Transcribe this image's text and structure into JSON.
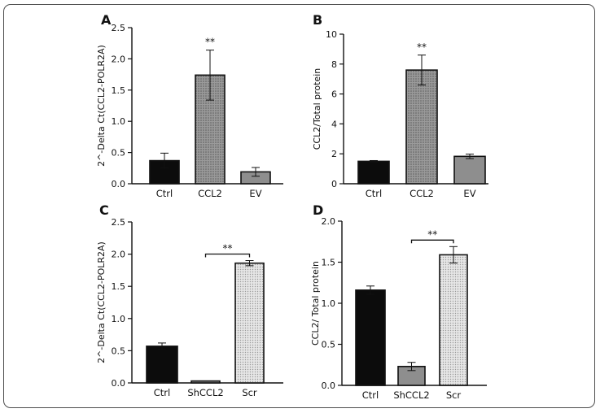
{
  "figure": {
    "frame": "rounded-border",
    "background": "#ffffff"
  },
  "chart_data": [
    {
      "id": "A",
      "type": "bar",
      "panel_label": "A",
      "ylabel": "2^-Delta Ct(CCL2-POLR2A)",
      "xlabel": "",
      "categories": [
        "Ctrl",
        "CCL2",
        "EV"
      ],
      "values": [
        0.37,
        1.74,
        0.19
      ],
      "errors": [
        0.12,
        0.4,
        0.07
      ],
      "bar_styles": [
        "black",
        "dotted-gray",
        "gray"
      ],
      "ylim": [
        0,
        2.5
      ],
      "yticks": [
        0.0,
        0.5,
        1.0,
        1.5,
        2.0,
        2.5
      ],
      "ytick_labels": [
        "0.0",
        "0.5",
        "1.0",
        "1.5",
        "2.0",
        "2.5"
      ],
      "annotations": [
        {
          "type": "star",
          "category": "CCL2",
          "text": "**"
        }
      ]
    },
    {
      "id": "B",
      "type": "bar",
      "panel_label": "B",
      "ylabel": "CCL2/Total protein",
      "xlabel": "",
      "categories": [
        "Ctrl",
        "CCL2",
        "EV"
      ],
      "values": [
        1.5,
        7.6,
        1.83
      ],
      "errors": [
        0.05,
        1.0,
        0.15
      ],
      "bar_styles": [
        "black",
        "dotted-gray",
        "gray"
      ],
      "ylim": [
        0,
        10
      ],
      "yticks": [
        0,
        2,
        4,
        6,
        8,
        10
      ],
      "ytick_labels": [
        "0",
        "2",
        "4",
        "6",
        "8",
        "10"
      ],
      "annotations": [
        {
          "type": "star",
          "category": "CCL2",
          "text": "**"
        }
      ]
    },
    {
      "id": "C",
      "type": "bar",
      "panel_label": "C",
      "ylabel": "2^-Delta Ct(CCL2-POLR2A)",
      "xlabel": "",
      "categories": [
        "Ctrl",
        "ShCCL2",
        "Scr"
      ],
      "values": [
        0.57,
        0.03,
        1.86
      ],
      "errors": [
        0.05,
        0.0,
        0.04
      ],
      "bar_styles": [
        "black",
        "gray",
        "dotted-light"
      ],
      "ylim": [
        0,
        2.5
      ],
      "yticks": [
        0.0,
        0.5,
        1.0,
        1.5,
        2.0,
        2.5
      ],
      "ytick_labels": [
        "0.0",
        "0.5",
        "1.0",
        "1.5",
        "2.0",
        "2.5"
      ],
      "annotations": [
        {
          "type": "bracket",
          "from": "ShCCL2",
          "to": "Scr",
          "text": "**"
        }
      ]
    },
    {
      "id": "D",
      "type": "bar",
      "panel_label": "D",
      "ylabel": "CCL2/ Total protein",
      "xlabel": "",
      "categories": [
        "Ctrl",
        "ShCCL2",
        "Scr"
      ],
      "values": [
        1.16,
        0.23,
        1.59
      ],
      "errors": [
        0.05,
        0.05,
        0.1
      ],
      "bar_styles": [
        "black",
        "gray",
        "dotted-light"
      ],
      "ylim": [
        0,
        2.0
      ],
      "yticks": [
        0.0,
        0.5,
        1.0,
        1.5,
        2.0
      ],
      "ytick_labels": [
        "0.0",
        "0.5",
        "1.0",
        "1.5",
        "2.0"
      ],
      "annotations": [
        {
          "type": "bracket",
          "from": "ShCCL2",
          "to": "Scr",
          "text": "**"
        }
      ]
    }
  ]
}
